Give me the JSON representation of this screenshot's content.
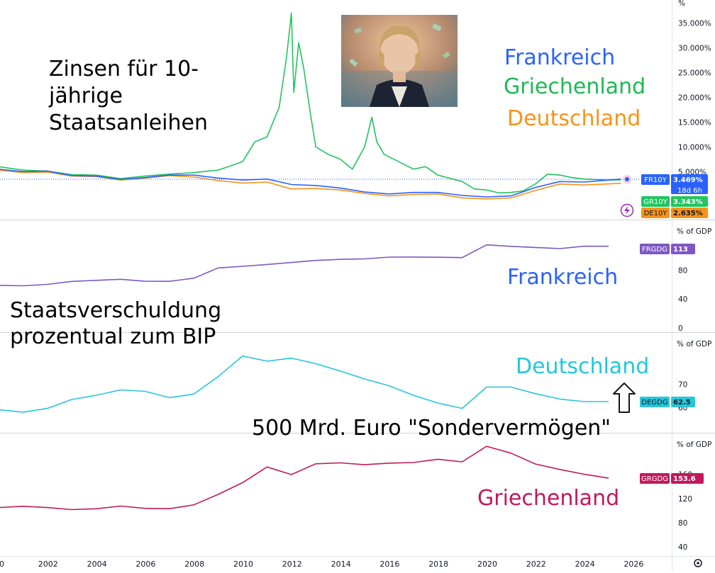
{
  "annotations": {
    "yield_title": "Zinsen für 10-\njährige\nStaatsanleihen",
    "debt_title": "Staatsverschuldung\nprozentual zum BIP",
    "sondervermoegen": "500 Mrd. Euro \"Sondervermögen\"",
    "legend_frankreich": "Frankreich",
    "legend_griechenland": "Griechenland",
    "legend_deutschland": "Deutschland",
    "label_frankreich": "Frankreich",
    "label_deutschland": "Deutschland",
    "label_griechenland": "Griechenland"
  },
  "colors": {
    "france_yield": "#2962ff",
    "greece_yield": "#22c55e",
    "germany_yield": "#f7931a",
    "france_debt": "#7e57c2",
    "germany_debt": "#26c6da",
    "greece_debt": "#c2185b",
    "legend_fr": "#2962ff",
    "legend_gr": "#1db954",
    "legend_de": "#f7931a",
    "label_de": "#26c6da",
    "label_gr": "#c2185b",
    "axis_text": "#131722",
    "gridline": "#e0e3eb",
    "last_price_line": "#2962ff"
  },
  "icons": {
    "lightning": "lightning-icon",
    "settings": "settings-icon",
    "arrow": "up-arrow-icon",
    "photo": "portrait-photo"
  },
  "chart_data": [
    {
      "type": "line",
      "title": "",
      "xlabel": "",
      "ylabel": "%",
      "unit_label": "%",
      "ylim": [
        -6,
        37
      ],
      "x_ticks": [
        "00",
        "2002",
        "2004",
        "2006",
        "2008",
        "2010",
        "2012",
        "2014",
        "2016",
        "2018",
        "2020",
        "2022",
        "2024",
        "2026"
      ],
      "y_ticks": [
        "5.000%",
        "10.000%",
        "15.000%",
        "20.000%",
        "25.000%",
        "30.000%",
        "35.000%"
      ],
      "series": [
        {
          "name": "FR10Y",
          "value_label": "3.469%",
          "countdown": "18d 6h",
          "x": [
            2000,
            2001,
            2002,
            2003,
            2004,
            2005,
            2006,
            2007,
            2008,
            2009,
            2010,
            2011,
            2012,
            2013,
            2014,
            2015,
            2016,
            2017,
            2018,
            2019,
            2020,
            2021,
            2022,
            2023,
            2024,
            2025.5
          ],
          "values": [
            5.5,
            5.0,
            5.1,
            4.2,
            4.1,
            3.4,
            3.8,
            4.3,
            4.3,
            3.7,
            3.3,
            3.5,
            2.4,
            2.2,
            1.7,
            0.9,
            0.5,
            0.8,
            0.8,
            0.2,
            -0.1,
            0.1,
            1.8,
            3.0,
            2.9,
            3.5
          ]
        },
        {
          "name": "GR10Y",
          "value_label": "3.343%",
          "x": [
            2000,
            2001,
            2002,
            2003,
            2004,
            2005,
            2006,
            2007,
            2008,
            2009,
            2010,
            2010.5,
            2011,
            2011.5,
            2011.8,
            2012.0,
            2012.1,
            2012.3,
            2012.5,
            2012.8,
            2013,
            2013.5,
            2014,
            2014.5,
            2015,
            2015.3,
            2015.5,
            2015.8,
            2016,
            2017,
            2017.5,
            2018,
            2019,
            2019.5,
            2020,
            2020.5,
            2021,
            2021.5,
            2022,
            2022.5,
            2023,
            2023.5,
            2024,
            2025,
            2025.5
          ],
          "values": [
            6.0,
            5.3,
            5.1,
            4.4,
            4.3,
            3.6,
            4.1,
            4.5,
            4.8,
            5.3,
            7.0,
            11.0,
            12.0,
            18.0,
            28.0,
            37.0,
            21.0,
            31.0,
            26.0,
            16.0,
            10.0,
            8.5,
            7.5,
            5.5,
            10.0,
            16.0,
            11.0,
            8.5,
            8.0,
            5.5,
            6.0,
            4.3,
            3.0,
            1.5,
            1.3,
            0.7,
            0.8,
            1.1,
            2.5,
            4.5,
            4.3,
            3.8,
            3.5,
            3.3,
            3.343
          ]
        },
        {
          "name": "DE10Y",
          "value_label": "2.635%",
          "x": [
            2000,
            2001,
            2002,
            2003,
            2004,
            2005,
            2006,
            2007,
            2008,
            2009,
            2010,
            2011,
            2012,
            2013,
            2014,
            2015,
            2016,
            2017,
            2018,
            2019,
            2020,
            2021,
            2022,
            2023,
            2024,
            2025.5
          ],
          "values": [
            5.3,
            4.8,
            4.9,
            4.1,
            4.0,
            3.3,
            3.7,
            4.2,
            3.9,
            3.2,
            2.7,
            2.9,
            1.5,
            1.6,
            1.3,
            0.6,
            0.1,
            0.4,
            0.5,
            -0.3,
            -0.5,
            -0.3,
            1.2,
            2.5,
            2.3,
            2.635
          ]
        }
      ]
    },
    {
      "type": "line",
      "title": "",
      "xlabel": "",
      "ylabel": "% of GDP",
      "unit_label": "% of GDP",
      "ylim": [
        0,
        128
      ],
      "y_ticks": [
        "0",
        "40",
        "80"
      ],
      "series": [
        {
          "name": "FRGDG",
          "value_label": "113",
          "x": [
            2000,
            2001,
            2002,
            2003,
            2004,
            2005,
            2006,
            2007,
            2008,
            2009,
            2010,
            2011,
            2012,
            2013,
            2014,
            2015,
            2016,
            2017,
            2018,
            2019,
            2020,
            2021,
            2022,
            2023,
            2024,
            2025
          ],
          "values": [
            58.9,
            58.3,
            60.3,
            64.4,
            65.9,
            67.4,
            64.6,
            64.5,
            68.8,
            83.0,
            85.3,
            87.8,
            90.6,
            93.4,
            94.9,
            95.6,
            98.0,
            98.1,
            97.8,
            97.4,
            115.0,
            112.9,
            111.4,
            109.8,
            113.1,
            113
          ]
        }
      ]
    },
    {
      "type": "line",
      "title": "",
      "xlabel": "",
      "ylabel": "% of GDP",
      "unit_label": "% of GDP",
      "ylim": [
        50,
        90
      ],
      "y_ticks": [
        "60",
        "70"
      ],
      "series": [
        {
          "name": "DEGDG",
          "value_label": "62.5",
          "x": [
            2000,
            2001,
            2002,
            2003,
            2004,
            2005,
            2006,
            2007,
            2008,
            2009,
            2010,
            2011,
            2012,
            2013,
            2014,
            2015,
            2016,
            2017,
            2018,
            2019,
            2020,
            2021,
            2022,
            2023,
            2024,
            2025
          ],
          "values": [
            59.0,
            58.0,
            59.6,
            63.4,
            65.2,
            67.5,
            66.9,
            64.2,
            65.7,
            73.2,
            82.0,
            79.8,
            81.1,
            78.7,
            75.6,
            72.2,
            69.3,
            65.2,
            61.9,
            59.6,
            68.7,
            68.7,
            65.9,
            63.6,
            62.5,
            62.5
          ]
        }
      ]
    },
    {
      "type": "line",
      "title": "",
      "xlabel": "",
      "ylabel": "% of GDP",
      "unit_label": "% of GDP",
      "ylim": [
        35,
        185
      ],
      "y_ticks": [
        "40",
        "80",
        "120",
        "160"
      ],
      "series": [
        {
          "name": "GRGDG",
          "value_label": "153.6",
          "x": [
            2000,
            2001,
            2002,
            2003,
            2004,
            2005,
            2006,
            2007,
            2008,
            2009,
            2010,
            2011,
            2012,
            2013,
            2014,
            2015,
            2016,
            2017,
            2018,
            2019,
            2020,
            2021,
            2022,
            2023,
            2024,
            2025
          ],
          "values": [
            104.9,
            107.1,
            104.9,
            101.5,
            102.9,
            107.4,
            103.6,
            103.1,
            109.4,
            126.7,
            146.2,
            172.1,
            159.6,
            177.4,
            178.9,
            175.9,
            178.5,
            179.5,
            184.9,
            180.7,
            206.3,
            195.0,
            177.0,
            168.0,
            160.0,
            153.6
          ]
        }
      ]
    }
  ]
}
